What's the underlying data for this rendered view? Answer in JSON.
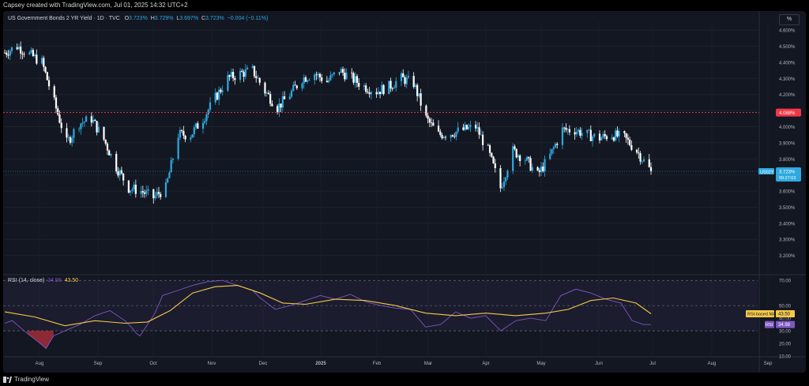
{
  "header": {
    "created_by": "Capsey created with TradingView.com, Jul 01, 2025 14:32 UTC+2"
  },
  "legend": {
    "title": "US Government Bonds 2 YR Yield · 1D · TVC",
    "o_label": "O",
    "o_value": "3.723%",
    "h_label": "H",
    "h_value": "3.729%",
    "l_label": "L",
    "l_value": "3.697%",
    "c_label": "C",
    "c_value": "3.723%",
    "change": "−0.004 (−0.11%)"
  },
  "unit_button": "%",
  "rsi_legend": {
    "label": "RSI (14, close)",
    "rsi_value": "34.98",
    "ma_value": "43.50"
  },
  "footer": {
    "brand": "TradingView"
  },
  "colors": {
    "up": "#2ea9df",
    "down": "#ffffff",
    "rsi": "#7e57c2",
    "ma": "#f7c948",
    "resistance": "#f23645",
    "background": "#131722"
  },
  "chart_data": [
    {
      "type": "candlestick",
      "title": "US Government Bonds 2 YR Yield · 1D · TVC",
      "ylim": [
        3.1,
        4.65
      ],
      "y_ticks": [
        "4.600%",
        "4.500%",
        "4.400%",
        "4.300%",
        "4.200%",
        "4.100%",
        "4.000%",
        "3.900%",
        "3.800%",
        "3.700%",
        "3.600%",
        "3.500%",
        "3.400%",
        "3.300%",
        "3.200%"
      ],
      "x_ticks": [
        "Aug",
        "Sep",
        "Oct",
        "Nov",
        "Dec",
        "2025",
        "Feb",
        "Mar",
        "Apr",
        "May",
        "Jun",
        "Jul",
        "Aug",
        "Sep"
      ],
      "resistance_level": 4.088,
      "resistance_label": "4.088%",
      "last_price": 3.723,
      "last_price_label": "3.723%",
      "symbol_label": "US02Y",
      "countdown_label": "09:27:03",
      "path_points": [
        [
          "2024-07-01",
          4.46
        ],
        [
          "2024-07-08",
          4.5
        ],
        [
          "2024-07-15",
          4.45
        ],
        [
          "2024-07-22",
          4.4
        ],
        [
          "2024-07-29",
          4.15
        ],
        [
          "2024-08-05",
          3.9
        ],
        [
          "2024-08-12",
          4.02
        ],
        [
          "2024-08-19",
          4.05
        ],
        [
          "2024-08-26",
          3.92
        ],
        [
          "2024-09-02",
          3.75
        ],
        [
          "2024-09-09",
          3.62
        ],
        [
          "2024-09-16",
          3.6
        ],
        [
          "2024-09-23",
          3.56
        ],
        [
          "2024-09-30",
          3.62
        ],
        [
          "2024-10-07",
          3.95
        ],
        [
          "2024-10-14",
          3.95
        ],
        [
          "2024-10-21",
          4.05
        ],
        [
          "2024-10-28",
          4.18
        ],
        [
          "2024-11-04",
          4.3
        ],
        [
          "2024-11-11",
          4.33
        ],
        [
          "2024-11-18",
          4.35
        ],
        [
          "2024-11-25",
          4.22
        ],
        [
          "2024-12-02",
          4.12
        ],
        [
          "2024-12-09",
          4.2
        ],
        [
          "2024-12-16",
          4.3
        ],
        [
          "2024-12-23",
          4.33
        ],
        [
          "2024-12-30",
          4.28
        ],
        [
          "2025-01-06",
          4.35
        ],
        [
          "2025-01-13",
          4.3
        ],
        [
          "2025-01-20",
          4.25
        ],
        [
          "2025-01-27",
          4.22
        ],
        [
          "2025-02-03",
          4.25
        ],
        [
          "2025-02-10",
          4.3
        ],
        [
          "2025-02-17",
          4.27
        ],
        [
          "2025-02-24",
          4.05
        ],
        [
          "2025-03-03",
          3.95
        ],
        [
          "2025-03-10",
          3.96
        ],
        [
          "2025-03-17",
          3.98
        ],
        [
          "2025-03-24",
          4.0
        ],
        [
          "2025-03-31",
          3.85
        ],
        [
          "2025-04-07",
          3.62
        ],
        [
          "2025-04-14",
          3.85
        ],
        [
          "2025-04-21",
          3.8
        ],
        [
          "2025-04-28",
          3.7
        ],
        [
          "2025-05-05",
          3.82
        ],
        [
          "2025-05-12",
          3.98
        ],
        [
          "2025-05-19",
          3.98
        ],
        [
          "2025-05-26",
          3.95
        ],
        [
          "2025-06-02",
          3.93
        ],
        [
          "2025-06-09",
          3.95
        ],
        [
          "2025-06-16",
          3.93
        ],
        [
          "2025-06-23",
          3.85
        ],
        [
          "2025-07-01",
          3.723
        ]
      ]
    },
    {
      "type": "line",
      "title": "RSI (14, close)",
      "ylim": [
        10,
        72
      ],
      "y_ticks": [
        "70.00",
        "50.00",
        "40.00",
        "30.00",
        "20.00",
        "10.00"
      ],
      "levels": [
        70,
        50,
        30
      ],
      "series": [
        {
          "name": "RSI",
          "value_label": "34.98",
          "points": [
            [
              0,
              36
            ],
            [
              0.01,
              38
            ],
            [
              0.02,
              33
            ],
            [
              0.03,
              28
            ],
            [
              0.045,
              21
            ],
            [
              0.055,
              16
            ],
            [
              0.065,
              26
            ],
            [
              0.08,
              30
            ],
            [
              0.1,
              35
            ],
            [
              0.12,
              42
            ],
            [
              0.14,
              46
            ],
            [
              0.16,
              38
            ],
            [
              0.17,
              32
            ],
            [
              0.175,
              28
            ],
            [
              0.18,
              26
            ],
            [
              0.2,
              44
            ],
            [
              0.21,
              58
            ],
            [
              0.23,
              62
            ],
            [
              0.25,
              66
            ],
            [
              0.27,
              69
            ],
            [
              0.29,
              70
            ],
            [
              0.31,
              66
            ],
            [
              0.33,
              62
            ],
            [
              0.34,
              56
            ],
            [
              0.36,
              47
            ],
            [
              0.38,
              50
            ],
            [
              0.4,
              54
            ],
            [
              0.42,
              58
            ],
            [
              0.44,
              55
            ],
            [
              0.46,
              59
            ],
            [
              0.48,
              53
            ],
            [
              0.5,
              50
            ],
            [
              0.52,
              48
            ],
            [
              0.54,
              47
            ],
            [
              0.56,
              33
            ],
            [
              0.58,
              35
            ],
            [
              0.6,
              45
            ],
            [
              0.62,
              40
            ],
            [
              0.64,
              42
            ],
            [
              0.66,
              30
            ],
            [
              0.68,
              38
            ],
            [
              0.7,
              40
            ],
            [
              0.72,
              38
            ],
            [
              0.74,
              58
            ],
            [
              0.76,
              63
            ],
            [
              0.78,
              60
            ],
            [
              0.8,
              55
            ],
            [
              0.82,
              52
            ],
            [
              0.835,
              38
            ],
            [
              0.85,
              35
            ],
            [
              0.86,
              34.98
            ]
          ]
        },
        {
          "name": "RSI-based MA",
          "value_label": "43.50",
          "points": [
            [
              0,
              45
            ],
            [
              0.04,
              41
            ],
            [
              0.08,
              34
            ],
            [
              0.12,
              38
            ],
            [
              0.16,
              36
            ],
            [
              0.19,
              37
            ],
            [
              0.22,
              46
            ],
            [
              0.25,
              60
            ],
            [
              0.28,
              65
            ],
            [
              0.31,
              66
            ],
            [
              0.34,
              60
            ],
            [
              0.37,
              52
            ],
            [
              0.4,
              51
            ],
            [
              0.44,
              55
            ],
            [
              0.48,
              54
            ],
            [
              0.52,
              50
            ],
            [
              0.56,
              44
            ],
            [
              0.6,
              42
            ],
            [
              0.64,
              44
            ],
            [
              0.68,
              42
            ],
            [
              0.72,
              44
            ],
            [
              0.75,
              47
            ],
            [
              0.78,
              54
            ],
            [
              0.81,
              56
            ],
            [
              0.84,
              52
            ],
            [
              0.86,
              43.5
            ]
          ]
        }
      ]
    }
  ]
}
